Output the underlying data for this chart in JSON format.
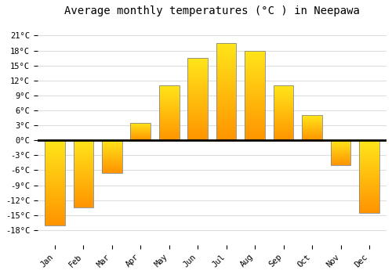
{
  "months": [
    "Jan",
    "Feb",
    "Mar",
    "Apr",
    "May",
    "Jun",
    "Jul",
    "Aug",
    "Sep",
    "Oct",
    "Nov",
    "Dec"
  ],
  "temperatures": [
    -17,
    -13.5,
    -6.5,
    3.5,
    11,
    16.5,
    19.5,
    18,
    11,
    5,
    -5,
    -14.5
  ],
  "title": "Average monthly temperatures (°C ) in Neepawa",
  "ylim": [
    -21,
    24
  ],
  "yticks": [
    -18,
    -15,
    -12,
    -9,
    -6,
    -3,
    0,
    3,
    6,
    9,
    12,
    15,
    18,
    21
  ],
  "bar_edge_color": "#888888",
  "background_color": "#ffffff",
  "grid_color": "#dddddd",
  "zero_line_color": "#000000",
  "title_fontsize": 10,
  "tick_fontsize": 7.5,
  "font_family": "monospace",
  "bar_width": 0.7
}
